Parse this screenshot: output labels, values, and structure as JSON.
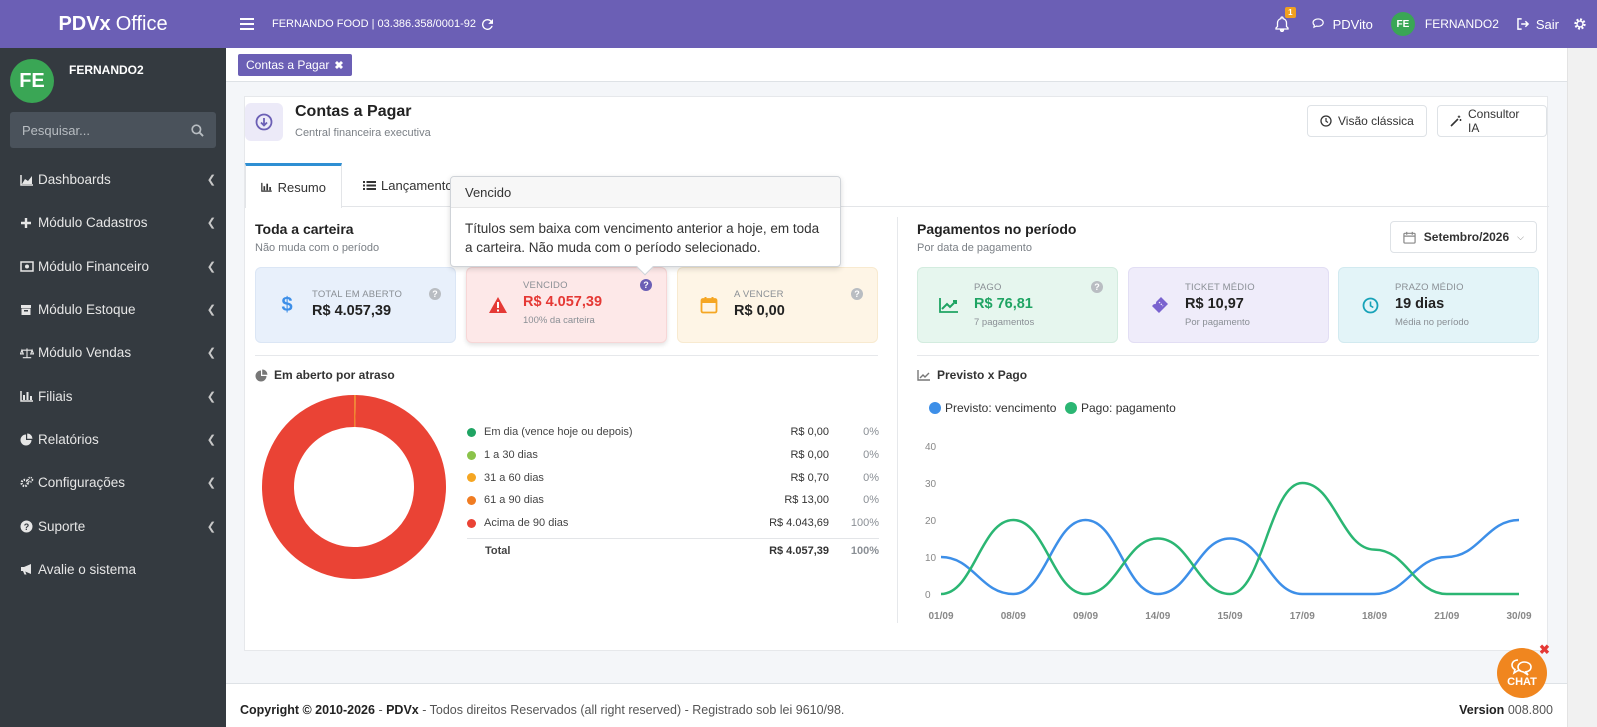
{
  "topbar": {
    "brand_bold": "PDVx",
    "brand_rest": "Office",
    "company": "FERNANDO FOOD | 03.386.358/0001-92",
    "notification_count": "1",
    "pdvito": "PDVito",
    "user_initials": "FE",
    "user_name": "FERNANDO2",
    "logout": "Sair"
  },
  "sidebar": {
    "avatar": "FE",
    "user_name": "FERNANDO2",
    "search_placeholder": "Pesquisar...",
    "items": [
      {
        "label": "Dashboards",
        "icon": "area-chart-icon"
      },
      {
        "label": "Módulo Cadastros",
        "icon": "plus-icon"
      },
      {
        "label": "Módulo Financeiro",
        "icon": "money-icon"
      },
      {
        "label": "Módulo Estoque",
        "icon": "box-icon"
      },
      {
        "label": "Módulo Vendas",
        "icon": "balance-scale-icon"
      },
      {
        "label": "Filiais",
        "icon": "bar-chart-icon"
      },
      {
        "label": "Relatórios",
        "icon": "pie-chart-icon"
      },
      {
        "label": "Configurações",
        "icon": "gears-icon"
      },
      {
        "label": "Suporte",
        "icon": "question-icon"
      },
      {
        "label": "Avalie o sistema",
        "icon": "bullhorn-icon"
      }
    ]
  },
  "page_tab": "Contas a Pagar",
  "header": {
    "title": "Contas a Pagar",
    "subtitle": "Central financeira executiva",
    "btn_classic": "Visão clássica",
    "btn_ai": "Consultor IA"
  },
  "tabs": {
    "resumo": "Resumo",
    "lancamentos": "Lançamentos"
  },
  "carteira": {
    "title": "Toda a carteira",
    "subtitle": "Não muda com o período",
    "kpis": [
      {
        "label": "TOTAL EM ABERTO",
        "value": "R$ 4.057,39",
        "sub": ""
      },
      {
        "label": "VENCIDO",
        "value": "R$ 4.057,39",
        "sub": "100% da carteira"
      },
      {
        "label": "A VENCER",
        "value": "R$ 0,00",
        "sub": ""
      }
    ]
  },
  "pagamentos": {
    "title": "Pagamentos no período",
    "subtitle": "Por data de pagamento",
    "period": "Setembro/2026",
    "kpis": [
      {
        "label": "PAGO",
        "value": "R$ 76,81",
        "sub": "7 pagamentos"
      },
      {
        "label": "TICKET MÉDIO",
        "value": "R$ 10,97",
        "sub": "Por pagamento"
      },
      {
        "label": "PRAZO MÉDIO",
        "value": "19 dias",
        "sub": "Média no período"
      }
    ]
  },
  "aging": {
    "title": "Em aberto por atraso",
    "rows": [
      {
        "label": "Em dia (vence hoje ou depois)",
        "value": "R$ 0,00",
        "pct": "0%",
        "color": "#1fa463"
      },
      {
        "label": "1 a 30 dias",
        "value": "R$ 0,00",
        "pct": "0%",
        "color": "#8bc34a"
      },
      {
        "label": "31 a 60 dias",
        "value": "R$ 0,70",
        "pct": "0%",
        "color": "#f5a623"
      },
      {
        "label": "61 a 90 dias",
        "value": "R$ 13,00",
        "pct": "0%",
        "color": "#f07c22"
      },
      {
        "label": "Acima de 90 dias",
        "value": "R$ 4.043,69",
        "pct": "100%",
        "color": "#ea4335"
      }
    ],
    "total_label": "Total",
    "total_value": "R$ 4.057,39",
    "total_pct": "100%"
  },
  "tooltip": {
    "title": "Vencido",
    "body": "Títulos sem baixa com vencimento anterior a hoje, em toda a carteira. Não muda com o período selecionado."
  },
  "footer": {
    "copyright_bold": "Copyright © 2010-2026",
    "brand": "PDVx",
    "rest": " - Todos direitos Reservados (all right reserved) - Registrado sob lei 9610/98.",
    "version_label": "Version",
    "version": "008.800"
  },
  "chat_label": "CHAT",
  "chart_data": [
    {
      "type": "pie",
      "title": "Em aberto por atraso",
      "categories": [
        "Em dia (vence hoje ou depois)",
        "1 a 30 dias",
        "31 a 60 dias",
        "61 a 90 dias",
        "Acima de 90 dias"
      ],
      "values": [
        0,
        0,
        0.7,
        13.0,
        4043.69
      ],
      "colors": [
        "#1fa463",
        "#8bc34a",
        "#f5a623",
        "#f07c22",
        "#ea4335"
      ]
    },
    {
      "type": "line",
      "title": "Previsto x Pago",
      "x": [
        "01/09",
        "08/09",
        "09/09",
        "14/09",
        "15/09",
        "17/09",
        "18/09",
        "21/09",
        "30/09"
      ],
      "ylim": [
        0,
        40
      ],
      "yticks": [
        0,
        10,
        20,
        30,
        40
      ],
      "legend": "top-left",
      "series": [
        {
          "name": "Previsto: vencimento",
          "color": "#3d8fe8",
          "values": [
            10,
            0,
            20,
            0,
            15,
            0,
            0,
            10,
            20
          ]
        },
        {
          "name": "Pago: pagamento",
          "color": "#2bb673",
          "values": [
            0,
            20,
            0,
            15,
            0,
            30,
            12,
            0,
            0
          ]
        }
      ]
    }
  ]
}
